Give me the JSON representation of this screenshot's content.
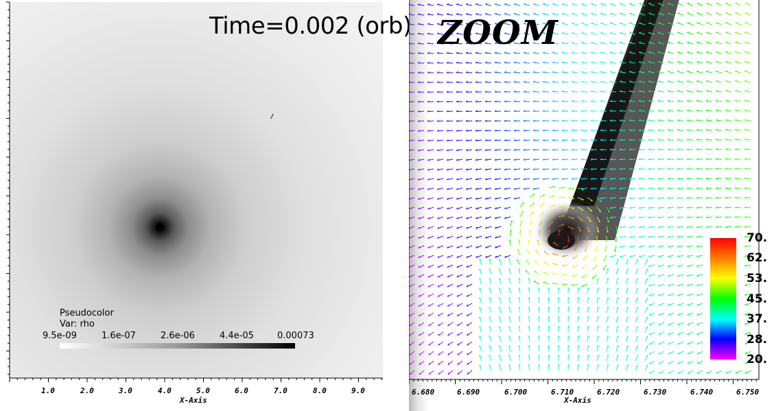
{
  "left_plot": {
    "time_label": "Time=0.002 (orb)",
    "legend": {
      "title": "Pseudocolor",
      "var": "Var: rho",
      "ticks": [
        "9.5e-09",
        "1.6e-07",
        "2.6e-06",
        "4.4e-05",
        "0.00073"
      ]
    },
    "x_axis": {
      "title": "X-Axis",
      "ticks": [
        "1.0",
        "2.0",
        "3.0",
        "4.0",
        "5.0",
        "6.0",
        "7.0",
        "8.0",
        "9.0"
      ]
    },
    "colors": {
      "low": "#f4f4f4",
      "high": "#000000"
    }
  },
  "right_plot": {
    "zoom_label": "ZOOM",
    "colorbar": {
      "ticks": [
        "70.",
        "62.",
        "53.",
        "45.",
        "37.",
        "28.",
        "20."
      ],
      "colors": [
        "#ff0000",
        "#ff8000",
        "#ffff00",
        "#00ff00",
        "#00ffff",
        "#0000ff",
        "#ff00ff"
      ]
    },
    "x_axis": {
      "title": "X-Axis",
      "ticks": [
        "6.680",
        "6.690",
        "6.700",
        "6.710",
        "6.720",
        "6.730",
        "6.740",
        "6.750"
      ]
    }
  }
}
